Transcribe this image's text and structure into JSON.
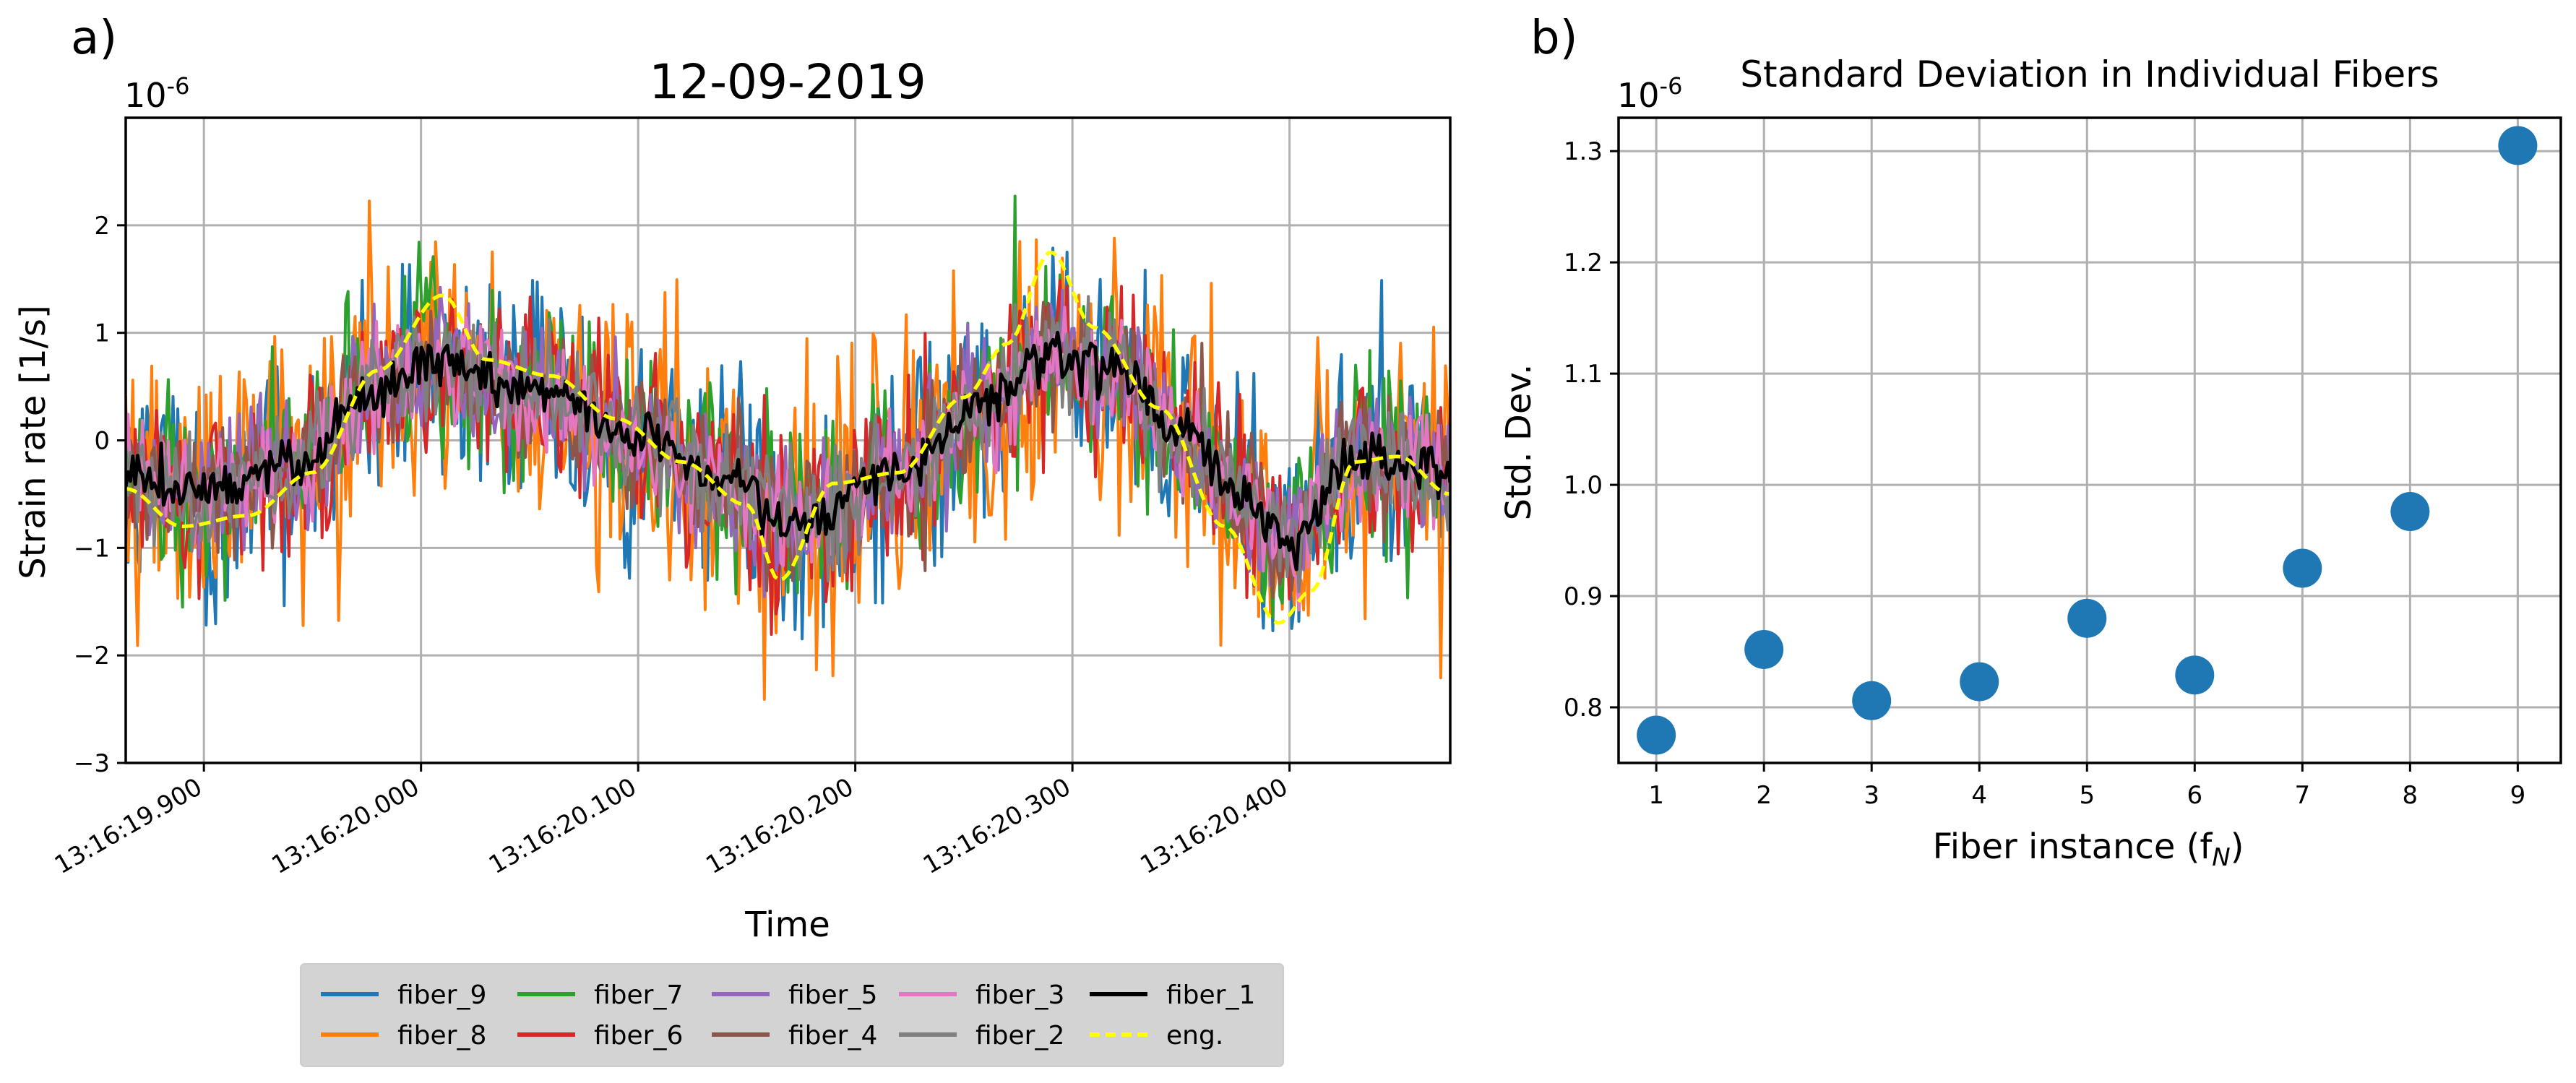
{
  "panels": {
    "a_label": "a)",
    "b_label": "b)"
  },
  "chart_data": [
    {
      "type": "line",
      "title": "12-09-2019",
      "xlabel": "Time",
      "ylabel": "Strain rate [1/s]",
      "y_multiplier": "10",
      "y_exponent": "-6",
      "ylim": [
        -3,
        3
      ],
      "xlim_seconds": [
        19.864,
        20.474
      ],
      "y_ticks": [
        {
          "value": -3,
          "label": "−3"
        },
        {
          "value": -2,
          "label": "−2"
        },
        {
          "value": -1,
          "label": "−1"
        },
        {
          "value": 0,
          "label": "0"
        },
        {
          "value": 1,
          "label": "1"
        },
        {
          "value": 2,
          "label": "2"
        }
      ],
      "x_ticks": [
        {
          "value": 19.9,
          "label": "13:16:19.900"
        },
        {
          "value": 20.0,
          "label": "13:16:20.000"
        },
        {
          "value": 20.1,
          "label": "13:16:20.100"
        },
        {
          "value": 20.2,
          "label": "13:16:20.200"
        },
        {
          "value": 20.3,
          "label": "13:16:20.300"
        },
        {
          "value": 20.4,
          "label": "13:16:20.400"
        }
      ],
      "envelope": {
        "description_units": "strain rate (1e-6 1/s) at time (s after 13:16:00)",
        "t": [
          19.864,
          19.9,
          19.94,
          19.98,
          20.01,
          20.05,
          20.1,
          20.14,
          20.17,
          20.22,
          20.26,
          20.29,
          20.32,
          20.35,
          20.38,
          20.4,
          20.43,
          20.474
        ],
        "y": [
          -0.35,
          -0.45,
          -0.25,
          0.45,
          0.75,
          0.45,
          0.0,
          -0.4,
          -0.75,
          -0.3,
          0.35,
          0.8,
          0.65,
          0.05,
          -0.55,
          -0.95,
          -0.15,
          -0.3
        ]
      },
      "eng_curve": {
        "t": [
          19.864,
          19.89,
          19.92,
          19.95,
          19.98,
          20.01,
          20.03,
          20.06,
          20.09,
          20.12,
          20.15,
          20.165,
          20.19,
          20.22,
          20.25,
          20.27,
          20.29,
          20.31,
          20.34,
          20.37,
          20.395,
          20.41,
          20.43,
          20.45,
          20.474
        ],
        "y": [
          -0.45,
          -0.8,
          -0.7,
          -0.3,
          0.65,
          1.35,
          0.75,
          0.6,
          0.2,
          -0.2,
          -0.6,
          -1.3,
          -0.4,
          -0.3,
          0.4,
          0.9,
          1.75,
          1.05,
          0.3,
          -0.8,
          -1.7,
          -1.4,
          -0.2,
          -0.15,
          -0.5
        ]
      },
      "series": [
        {
          "name": "fiber_9",
          "color": "#1f77b4",
          "width": 4,
          "amp": 0.85,
          "seed": 9
        },
        {
          "name": "fiber_8",
          "color": "#ff7f0e",
          "width": 4,
          "amp": 1.15,
          "seed": 8
        },
        {
          "name": "fiber_7",
          "color": "#2ca02c",
          "width": 4,
          "amp": 0.75,
          "seed": 7
        },
        {
          "name": "fiber_6",
          "color": "#d62728",
          "width": 4,
          "amp": 0.65,
          "seed": 6
        },
        {
          "name": "fiber_5",
          "color": "#9467bd",
          "width": 4,
          "amp": 0.55,
          "seed": 5
        },
        {
          "name": "fiber_4",
          "color": "#8c564b",
          "width": 4,
          "amp": 0.5,
          "seed": 4
        },
        {
          "name": "fiber_3",
          "color": "#e377c2",
          "width": 4,
          "amp": 0.45,
          "seed": 3
        },
        {
          "name": "fiber_2",
          "color": "#7f7f7f",
          "width": 4,
          "amp": 0.45,
          "seed": 2
        },
        {
          "name": "fiber_1",
          "color": "#000000",
          "width": 5,
          "amp": 0.2,
          "seed": 1
        },
        {
          "name": "eng.",
          "color": "#ffff00",
          "width": 5,
          "dashed": true
        }
      ],
      "legend": {
        "placement": "below",
        "columns": [
          [
            "fiber_9",
            "fiber_8"
          ],
          [
            "fiber_7",
            "fiber_6"
          ],
          [
            "fiber_5",
            "fiber_4"
          ],
          [
            "fiber_3",
            "fiber_2"
          ],
          [
            "fiber_1",
            "eng."
          ]
        ]
      }
    },
    {
      "type": "scatter",
      "title": "Standard Deviation in Individual Fibers",
      "xlabel": "Fiber instance (f",
      "xlabel_sub": "N",
      "xlabel_close": ")",
      "ylabel": "Std. Dev.",
      "y_multiplier": "10",
      "y_exponent": "-6",
      "xlim": [
        0.65,
        9.4
      ],
      "ylim": [
        0.75,
        1.33
      ],
      "x_ticks": [
        "1",
        "2",
        "3",
        "4",
        "5",
        "6",
        "7",
        "8",
        "9"
      ],
      "y_ticks": [
        "0.8",
        "0.9",
        "1.0",
        "1.1",
        "1.2",
        "1.3"
      ],
      "color": "#1f77b4",
      "x": [
        1,
        2,
        3,
        4,
        5,
        6,
        7,
        8,
        9
      ],
      "y": [
        0.775,
        0.852,
        0.806,
        0.823,
        0.88,
        0.829,
        0.925,
        0.976,
        1.305
      ]
    }
  ]
}
